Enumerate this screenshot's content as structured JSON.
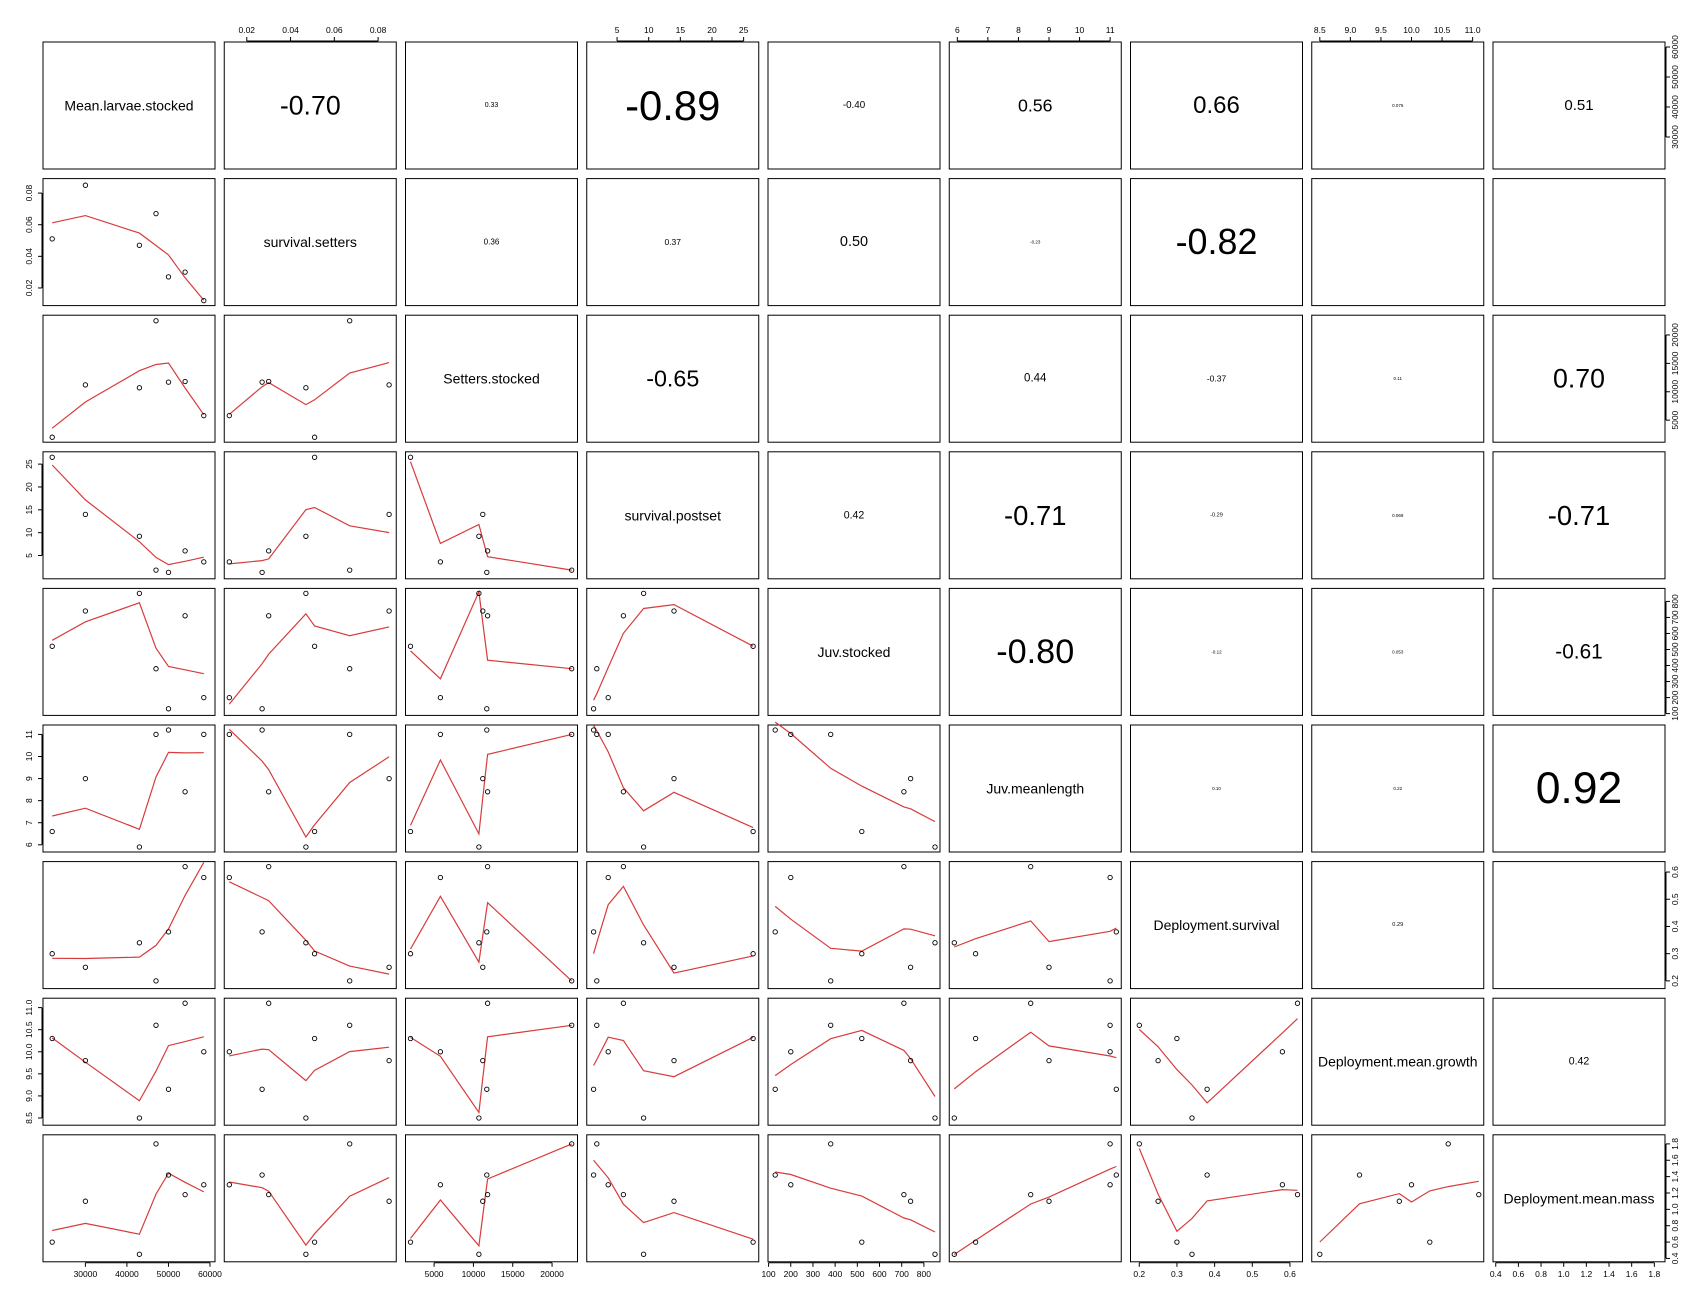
{
  "colors": {
    "smoother": "#d83b3b",
    "points": "#000000",
    "frame": "#000000",
    "background": "#ffffff"
  },
  "chart_data": {
    "type": "scatter",
    "layout": "pairs-matrix",
    "panels": {
      "diagonal": "variable names",
      "lower": "scatter with lowess smoother",
      "upper": "correlation coefficient, text size scaled by magnitude"
    },
    "variables": [
      "Mean.larvae.stocked",
      "survival.setters",
      "Setters.stocked",
      "survival.postset",
      "Juv.stocked",
      "Juv.meanlength",
      "Deployment.survival",
      "Deployment.mean.growth",
      "Deployment.mean.mass"
    ],
    "tick_labels": [
      [
        "30000",
        "40000",
        "50000",
        "60000"
      ],
      [
        "0.02",
        "0.04",
        "0.06",
        "0.08"
      ],
      [
        "5000",
        "10000",
        "15000",
        "20000"
      ],
      [
        "5",
        "10",
        "15",
        "20",
        "25"
      ],
      [
        "100",
        "200",
        "300",
        "400",
        "500",
        "600",
        "700",
        "800"
      ],
      [
        "6",
        "7",
        "8",
        "9",
        "10",
        "11"
      ],
      [
        "0.2",
        "0.3",
        "0.4",
        "0.5",
        "0.6"
      ],
      [
        "8.5",
        "9.0",
        "9.5",
        "10.0",
        "10.5",
        "11.0"
      ],
      [
        "0.4",
        "0.6",
        "0.8",
        "1.0",
        "1.2",
        "1.4",
        "1.6",
        "1.8"
      ]
    ],
    "ticks": [
      [
        30000,
        40000,
        50000,
        60000
      ],
      [
        0.02,
        0.04,
        0.06,
        0.08
      ],
      [
        5000,
        10000,
        15000,
        20000
      ],
      [
        5,
        10,
        15,
        20,
        25
      ],
      [
        100,
        200,
        300,
        400,
        500,
        600,
        700,
        800
      ],
      [
        6,
        7,
        8,
        9,
        10,
        11
      ],
      [
        0.2,
        0.3,
        0.4,
        0.5,
        0.6
      ],
      [
        8.5,
        9.0,
        9.5,
        10.0,
        10.5,
        11.0
      ],
      [
        0.4,
        0.6,
        0.8,
        1.0,
        1.2,
        1.4,
        1.6,
        1.8
      ]
    ],
    "axis_ranges": [
      [
        21000,
        60000
      ],
      [
        0.012,
        0.086
      ],
      [
        2000,
        22600
      ],
      [
        1.0,
        26.6
      ],
      [
        120,
        850
      ],
      [
        5.9,
        11.2
      ],
      [
        0.19,
        0.62
      ],
      [
        8.45,
        11.1
      ],
      [
        0.42,
        1.85
      ]
    ],
    "correlations": [
      {
        "row": 0,
        "col": 1,
        "value": "-0.70"
      },
      {
        "row": 0,
        "col": 2,
        "value": "0.33"
      },
      {
        "row": 0,
        "col": 3,
        "value": "-0.89"
      },
      {
        "row": 0,
        "col": 4,
        "value": "-0.40"
      },
      {
        "row": 0,
        "col": 5,
        "value": "0.56"
      },
      {
        "row": 0,
        "col": 6,
        "value": "0.66"
      },
      {
        "row": 0,
        "col": 7,
        "value": "0.076"
      },
      {
        "row": 0,
        "col": 8,
        "value": "0.51"
      },
      {
        "row": 1,
        "col": 2,
        "value": "0.36"
      },
      {
        "row": 1,
        "col": 3,
        "value": "0.37"
      },
      {
        "row": 1,
        "col": 4,
        "value": "0.50"
      },
      {
        "row": 1,
        "col": 5,
        "value": "-0.23"
      },
      {
        "row": 1,
        "col": 6,
        "value": "-0.82"
      },
      {
        "row": 2,
        "col": 3,
        "value": "-0.65"
      },
      {
        "row": 2,
        "col": 5,
        "value": "0.44"
      },
      {
        "row": 2,
        "col": 6,
        "value": "-0.37"
      },
      {
        "row": 2,
        "col": 7,
        "value": "0.11"
      },
      {
        "row": 2,
        "col": 8,
        "value": "0.70"
      },
      {
        "row": 3,
        "col": 4,
        "value": "0.42"
      },
      {
        "row": 3,
        "col": 5,
        "value": "-0.71"
      },
      {
        "row": 3,
        "col": 6,
        "value": "-0.29"
      },
      {
        "row": 3,
        "col": 7,
        "value": "0.069"
      },
      {
        "row": 3,
        "col": 8,
        "value": "-0.71"
      },
      {
        "row": 4,
        "col": 5,
        "value": "-0.80"
      },
      {
        "row": 4,
        "col": 6,
        "value": "-0.12"
      },
      {
        "row": 4,
        "col": 7,
        "value": "0.053"
      },
      {
        "row": 4,
        "col": 8,
        "value": "-0.61"
      },
      {
        "row": 5,
        "col": 6,
        "value": "0.10"
      },
      {
        "row": 5,
        "col": 7,
        "value": "0.22"
      },
      {
        "row": 5,
        "col": 8,
        "value": "0.92"
      },
      {
        "row": 6,
        "col": 7,
        "value": "0.29"
      },
      {
        "row": 7,
        "col": 8,
        "value": "0.42"
      }
    ],
    "observations": [
      [
        22000,
        0.051,
        2000,
        26.5,
        520,
        6.6,
        0.3,
        10.3,
        0.6
      ],
      [
        30000,
        0.085,
        11200,
        14.0,
        740,
        9.0,
        0.25,
        9.8,
        1.1
      ],
      [
        43000,
        0.047,
        10700,
        9.2,
        850,
        5.9,
        0.34,
        8.5,
        0.45
      ],
      [
        47000,
        0.067,
        22500,
        1.8,
        380,
        11.0,
        0.2,
        10.6,
        1.8
      ],
      [
        50000,
        0.027,
        11700,
        1.3,
        130,
        11.2,
        0.38,
        9.15,
        1.42
      ],
      [
        54000,
        0.03,
        11800,
        6.0,
        710,
        8.4,
        0.62,
        11.1,
        1.18
      ],
      [
        58500,
        0.012,
        5800,
        3.6,
        200,
        11.0,
        0.58,
        10.0,
        1.3
      ]
    ]
  }
}
